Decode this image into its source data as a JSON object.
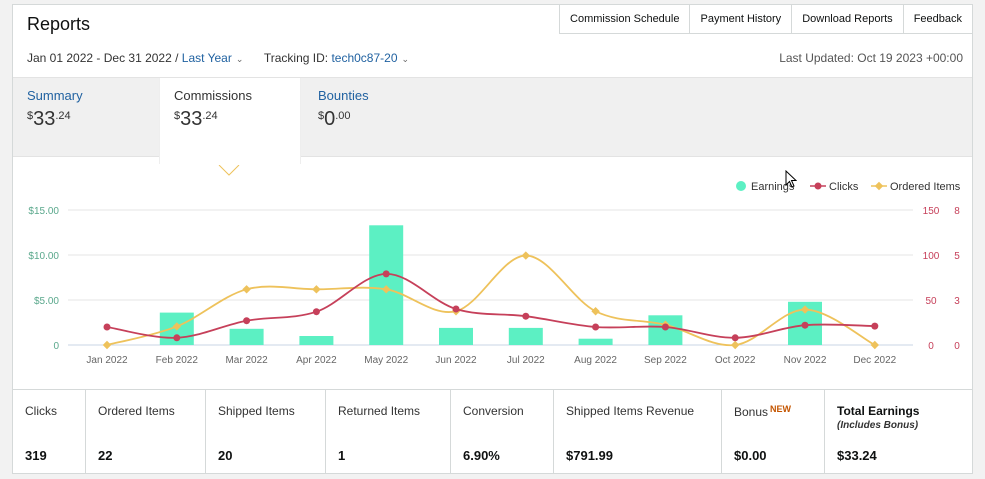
{
  "header": {
    "title": "Reports",
    "top_tabs": [
      "Commission Schedule",
      "Payment History",
      "Download Reports",
      "Feedback"
    ]
  },
  "filters": {
    "date_range": "Jan 01 2022 - Dec 31 2022 /",
    "period": "Last Year",
    "tracking_label": "Tracking ID:",
    "tracking_id": "tech0c87-20",
    "last_updated": "Last Updated: Oct 19 2023 +00:00"
  },
  "metric_tabs": [
    {
      "label": "Summary",
      "currency": "$",
      "whole": "33",
      "cents": ".24"
    },
    {
      "label": "Commissions",
      "currency": "$",
      "whole": "33",
      "cents": ".24"
    },
    {
      "label": "Bounties",
      "currency": "$",
      "whole": "0",
      "cents": ".00"
    }
  ],
  "stats": [
    {
      "label": "Clicks",
      "value": "319"
    },
    {
      "label": "Ordered Items",
      "value": "22"
    },
    {
      "label": "Shipped Items",
      "value": "20"
    },
    {
      "label": "Returned Items",
      "value": "1"
    },
    {
      "label": "Conversion",
      "value": "6.90%"
    },
    {
      "label": "Shipped Items Revenue",
      "value": "$791.99"
    },
    {
      "label": "Bonus",
      "badge": "NEW",
      "value": "$0.00"
    },
    {
      "label": "Total Earnings",
      "sublabel": "(Includes Bonus)",
      "value": "$33.24"
    }
  ],
  "colors": {
    "earnings": "#5cf0c3",
    "clicks": "#c6405a",
    "ordered": "#eec25b",
    "link": "#2162a1"
  },
  "chart_data": {
    "type": "bar",
    "categories": [
      "Jan 2022",
      "Feb 2022",
      "Mar 2022",
      "Apr 2022",
      "May 2022",
      "Jun 2022",
      "Jul 2022",
      "Aug 2022",
      "Sep 2022",
      "Oct 2022",
      "Nov 2022",
      "Dec 2022"
    ],
    "legend_position": "top-right",
    "grid": true,
    "axes": {
      "left": {
        "ticks": [
          "0",
          "$5.00",
          "$10.00",
          "$15.00"
        ],
        "range": [
          0,
          15
        ]
      },
      "right_clicks": {
        "ticks": [
          "0",
          "50",
          "100",
          "150"
        ],
        "range": [
          0,
          150
        ]
      },
      "right_items": {
        "ticks": [
          "0",
          "3",
          "5",
          "8"
        ],
        "range": [
          0,
          8
        ]
      }
    },
    "series": [
      {
        "name": "Earnings",
        "type": "bar",
        "axis": "left",
        "values": [
          0,
          3.6,
          1.8,
          1.0,
          13.3,
          1.9,
          1.9,
          0.7,
          3.3,
          0,
          4.8,
          0
        ]
      },
      {
        "name": "Clicks",
        "type": "line",
        "axis": "right_clicks",
        "values": [
          20,
          8,
          27,
          37,
          79,
          40,
          32,
          20,
          20,
          8,
          22,
          21
        ]
      },
      {
        "name": "Ordered Items",
        "type": "line",
        "axis": "right_items",
        "values": [
          0,
          1.1,
          3.3,
          3.3,
          3.3,
          2.0,
          5.3,
          2.0,
          1.2,
          0,
          2.1,
          0
        ]
      }
    ]
  }
}
